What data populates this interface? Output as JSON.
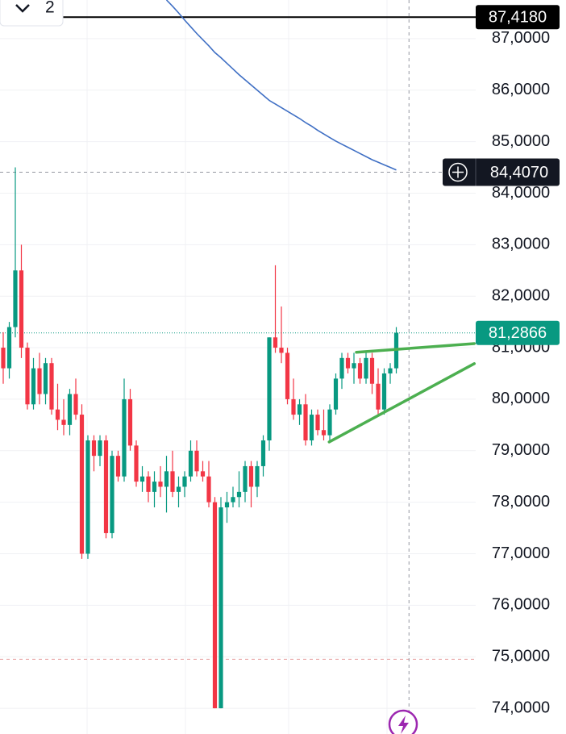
{
  "toolbar": {
    "label": "2"
  },
  "chart_data": {
    "type": "candlestick",
    "up_color": "#089981",
    "down_color": "#f23645",
    "ylim": [
      73.5,
      87.75
    ],
    "yticks": [
      {
        "value": 74,
        "label": "74,0000"
      },
      {
        "value": 75,
        "label": "75,0000"
      },
      {
        "value": 76,
        "label": "76,0000"
      },
      {
        "value": 77,
        "label": "77,0000"
      },
      {
        "value": 78,
        "label": "78,0000"
      },
      {
        "value": 79,
        "label": "79,0000"
      },
      {
        "value": 80,
        "label": "80,0000"
      },
      {
        "value": 81,
        "label": "81,0000"
      },
      {
        "value": 82,
        "label": "82,0000"
      },
      {
        "value": 83,
        "label": "83,0000"
      },
      {
        "value": 84,
        "label": "84,0000"
      },
      {
        "value": 85,
        "label": "85,0000"
      },
      {
        "value": 86,
        "label": "86,0000"
      },
      {
        "value": 87,
        "label": "87,0000"
      }
    ],
    "grid": true,
    "open": [
      81.0,
      80.6,
      81.4,
      82.5,
      81.0,
      79.9,
      80.6,
      80.1,
      80.7,
      79.8,
      79.6,
      79.5,
      80.1,
      79.7,
      77.0,
      79.2,
      78.9,
      79.2,
      77.4,
      78.9,
      78.5,
      80.0,
      79.1,
      78.4,
      78.5,
      78.2,
      78.4,
      78.3,
      78.6,
      78.2,
      78.3,
      78.5,
      79.0,
      78.6,
      78.5,
      78.0,
      74.0,
      77.9,
      78.0,
      78.1,
      78.2,
      78.7,
      78.3,
      78.7,
      79.2,
      81.2,
      81.0,
      80.9,
      80.0,
      79.7,
      79.9,
      79.2,
      79.7,
      79.4,
      79.3,
      79.8,
      80.4,
      80.8,
      80.6,
      80.7,
      80.4,
      80.8,
      80.3,
      79.8,
      80.5,
      80.6
    ],
    "high": [
      81.3,
      81.5,
      84.5,
      83.0,
      81.1,
      80.8,
      80.9,
      80.8,
      80.8,
      80.3,
      80.0,
      80.2,
      80.4,
      79.9,
      79.3,
      79.3,
      79.3,
      79.3,
      79.0,
      79.0,
      80.4,
      80.2,
      79.2,
      78.7,
      78.6,
      78.6,
      78.7,
      78.9,
      79.0,
      78.5,
      78.6,
      79.2,
      79.2,
      78.8,
      78.8,
      78.1,
      78.1,
      78.2,
      78.3,
      78.6,
      78.8,
      78.8,
      78.8,
      79.3,
      81.2,
      82.6,
      81.8,
      81.0,
      80.4,
      80.0,
      80.1,
      79.8,
      79.8,
      79.8,
      79.9,
      80.5,
      80.9,
      80.9,
      80.9,
      80.8,
      80.9,
      80.9,
      80.6,
      80.6,
      80.7,
      81.4
    ],
    "low": [
      80.3,
      80.4,
      81.2,
      80.8,
      79.8,
      79.8,
      79.9,
      79.9,
      79.7,
      79.4,
      79.3,
      79.3,
      79.6,
      76.9,
      76.9,
      78.6,
      78.7,
      77.3,
      77.3,
      78.4,
      78.4,
      79.0,
      78.3,
      78.2,
      78.0,
      77.9,
      78.1,
      77.8,
      78.1,
      77.9,
      78.1,
      78.4,
      78.5,
      78.4,
      77.9,
      74.0,
      74.0,
      77.6,
      77.9,
      77.9,
      78.0,
      77.9,
      78.1,
      78.5,
      79.0,
      80.9,
      80.7,
      79.9,
      79.6,
      79.5,
      79.1,
      79.1,
      79.3,
      79.2,
      79.2,
      79.7,
      80.2,
      80.5,
      80.3,
      80.3,
      80.3,
      80.1,
      79.7,
      79.7,
      80.3,
      80.5
    ],
    "close": [
      80.6,
      81.4,
      82.5,
      81.0,
      79.9,
      80.6,
      80.1,
      80.7,
      79.8,
      79.6,
      79.5,
      80.1,
      79.7,
      77.0,
      79.2,
      78.9,
      79.2,
      77.4,
      78.9,
      78.5,
      80.0,
      79.1,
      78.4,
      78.5,
      78.2,
      78.4,
      78.3,
      78.6,
      78.2,
      78.3,
      78.5,
      79.0,
      78.6,
      78.5,
      78.0,
      74.0,
      77.9,
      78.0,
      78.1,
      78.2,
      78.7,
      78.3,
      78.7,
      79.2,
      81.2,
      81.0,
      80.9,
      80.0,
      79.7,
      79.9,
      79.2,
      79.7,
      79.4,
      79.3,
      79.8,
      80.4,
      80.8,
      80.6,
      80.7,
      80.4,
      80.8,
      80.3,
      79.8,
      80.5,
      80.6,
      81.29
    ],
    "moving_average": {
      "color": "#3f6fc4",
      "values": [
        null,
        null,
        null,
        null,
        null,
        null,
        null,
        null,
        null,
        null,
        null,
        null,
        null,
        null,
        null,
        null,
        null,
        null,
        null,
        null,
        null,
        null,
        null,
        null,
        null,
        null,
        null,
        87.75,
        87.63,
        87.5,
        87.36,
        87.23,
        87.1,
        86.98,
        86.86,
        86.73,
        86.63,
        86.52,
        86.41,
        86.3,
        86.2,
        86.1,
        86.0,
        85.9,
        85.8,
        85.73,
        85.66,
        85.59,
        85.52,
        85.45,
        85.37,
        85.3,
        85.22,
        85.15,
        85.08,
        85.01,
        84.95,
        84.89,
        84.83,
        84.77,
        84.71,
        84.65,
        84.6,
        84.55,
        84.5,
        84.45
      ]
    },
    "trendlines": [
      {
        "color": "#4caf50",
        "x": [
          58.4,
          77.9
        ],
        "values": [
          80.91,
          81.08
        ]
      },
      {
        "color": "#4caf50",
        "x": [
          53.9,
          77.9
        ],
        "values": [
          79.17,
          80.69
        ]
      }
    ],
    "price_lines": [
      {
        "value": 87.418,
        "label": "87,4180",
        "color": "#000000",
        "style": "solid"
      },
      {
        "value": 81.2866,
        "label": "81,2866",
        "color": "#089981",
        "style": "dotted"
      },
      {
        "value": 74.95,
        "color": "#e8a0a0",
        "style": "dashed"
      }
    ],
    "crosshair": {
      "x": 67.1,
      "value": 84.407,
      "label": "84,4070",
      "color": "#131722"
    }
  }
}
